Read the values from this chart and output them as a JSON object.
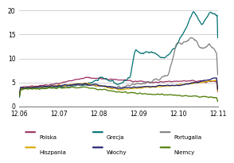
{
  "title": "",
  "xlabel": "",
  "ylabel": "",
  "ylim": [
    0,
    20
  ],
  "yticks": [
    0,
    5,
    10,
    15,
    20
  ],
  "xtick_labels": [
    "12.06",
    "12.07",
    "12.08",
    "12.09",
    "12.10",
    "12.11"
  ],
  "legend": [
    {
      "label": "Polska",
      "color": "#9b3060"
    },
    {
      "label": "Grecja",
      "color": "#007070"
    },
    {
      "label": "Portugalia",
      "color": "#808080"
    },
    {
      "label": "Hiszpania",
      "color": "#d4a800"
    },
    {
      "label": "Włochy",
      "color": "#1a1a6e"
    },
    {
      "label": "Niemcy",
      "color": "#4a7a00"
    }
  ],
  "background_color": "#ffffff",
  "grid_color": "#c0c0c0"
}
